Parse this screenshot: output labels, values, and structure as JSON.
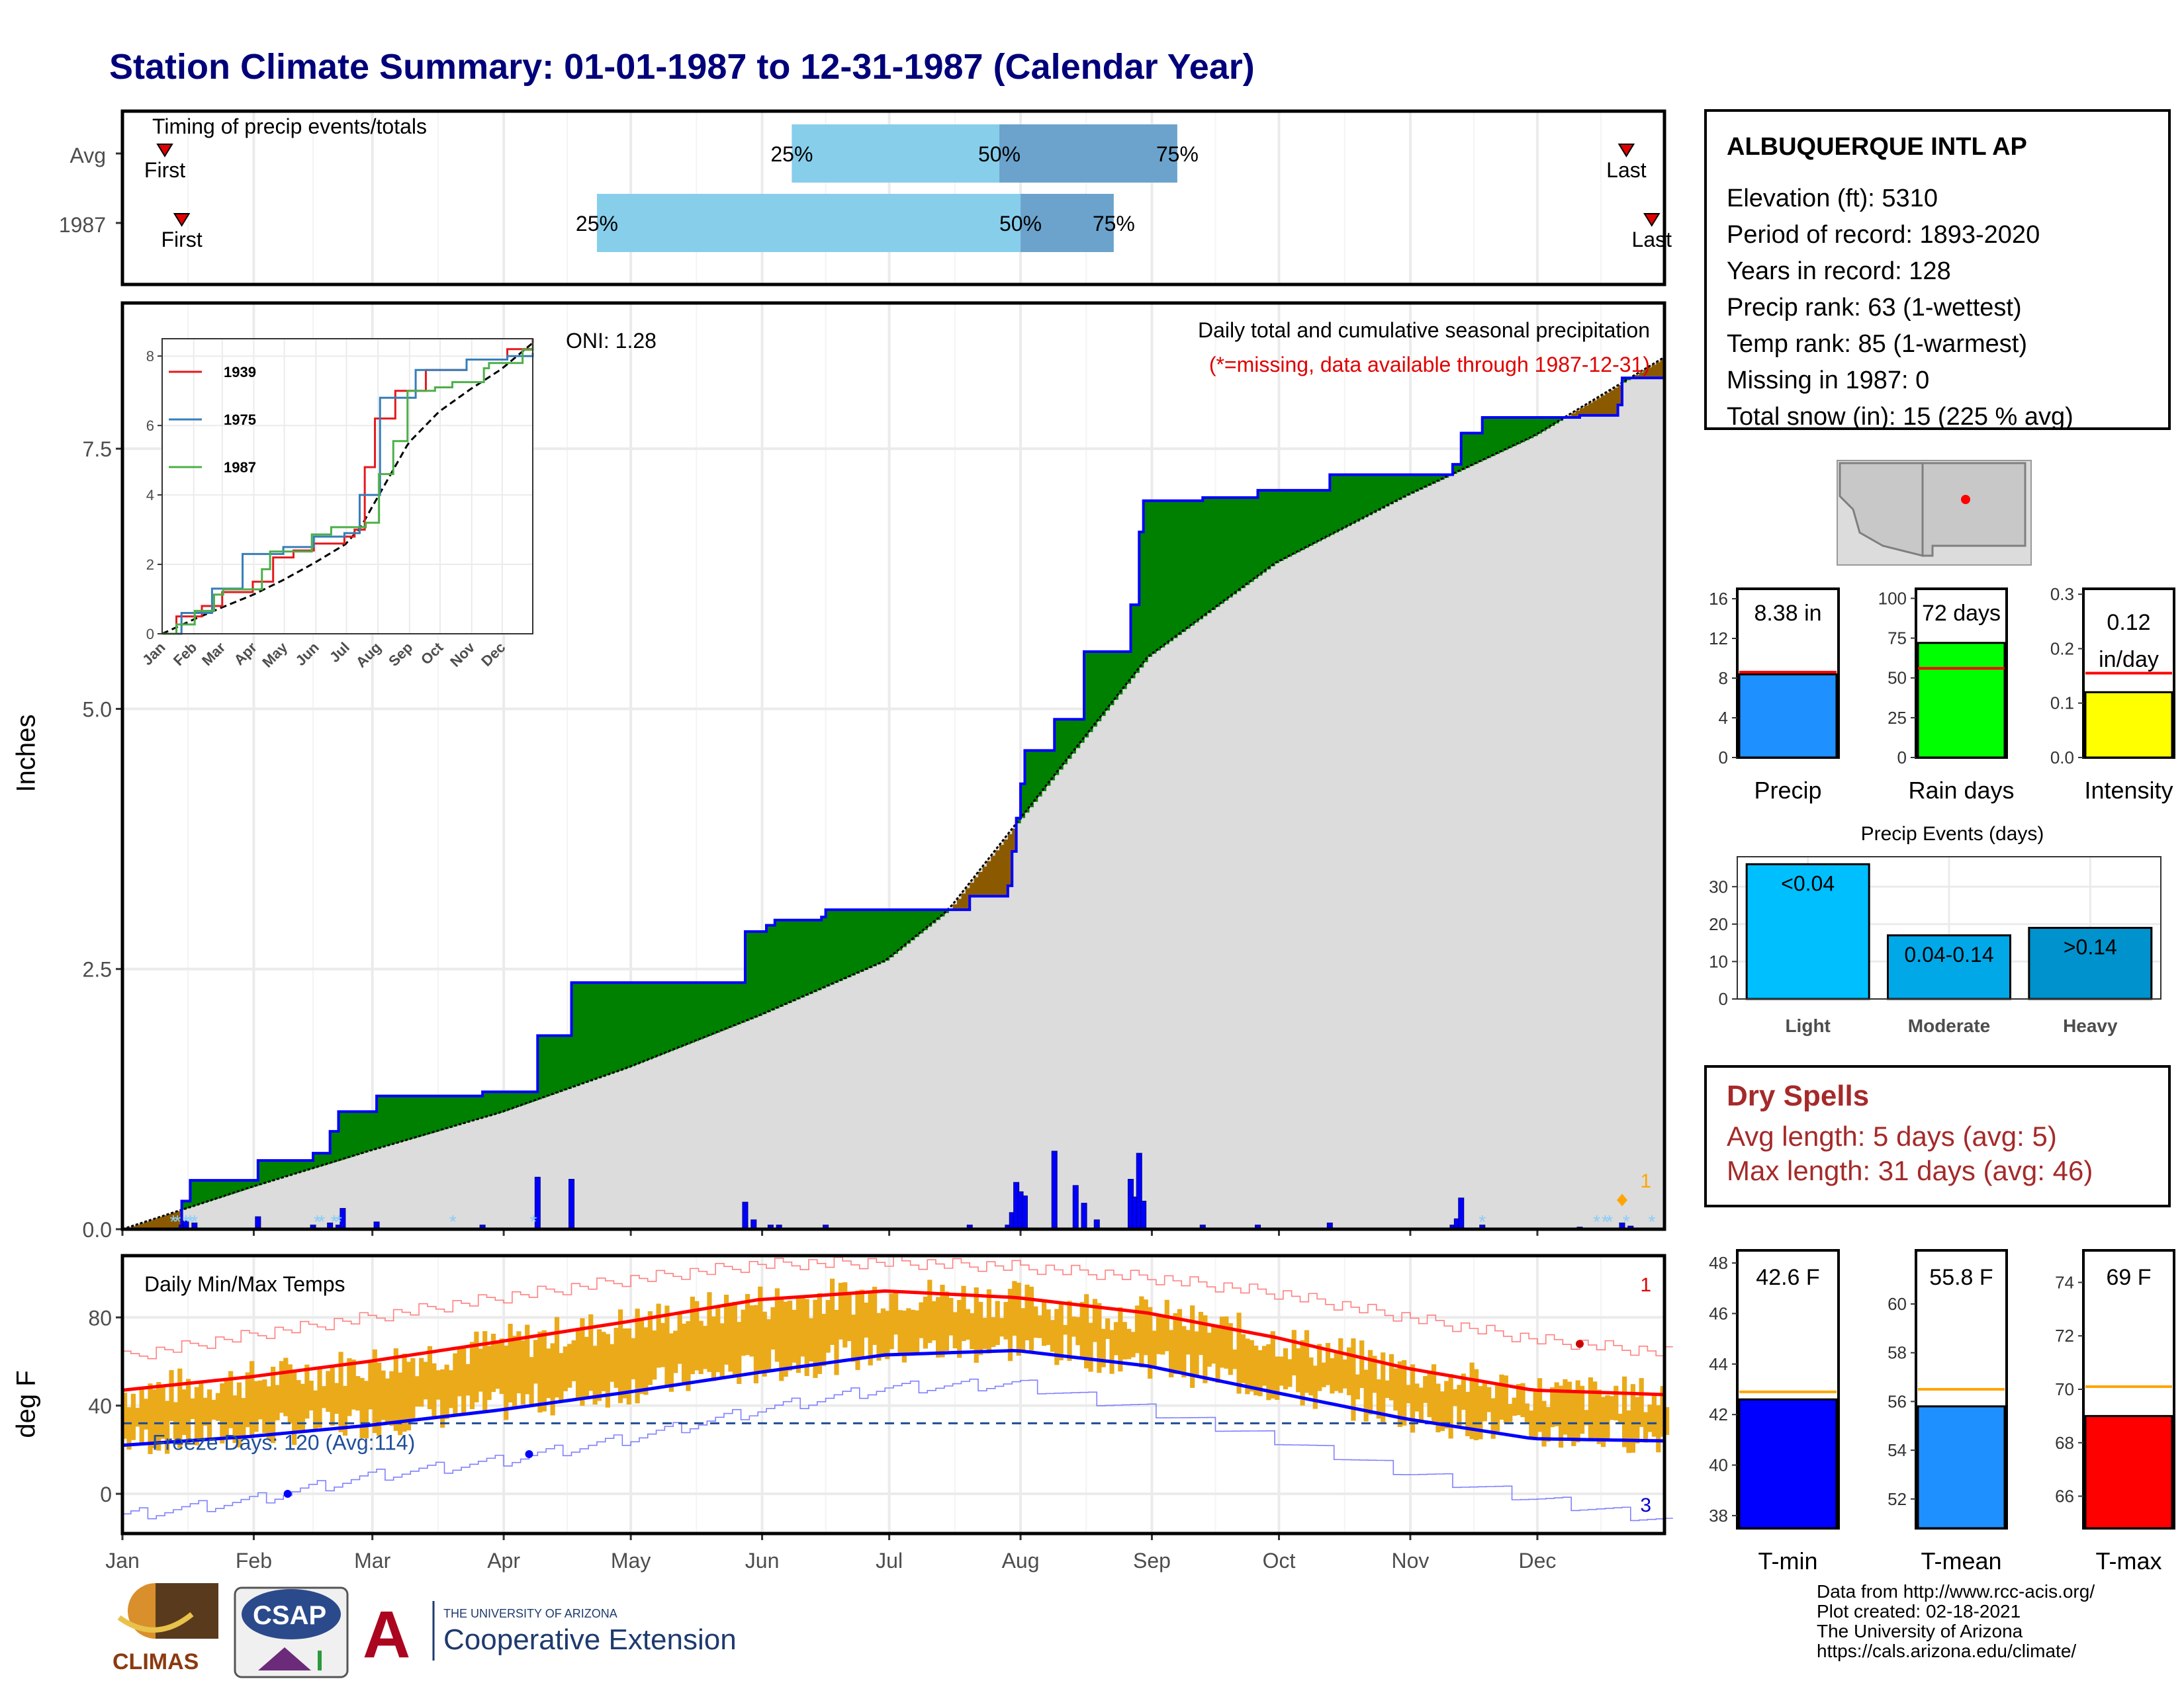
{
  "page": {
    "title": "Station Climate Summary: 01-01-1987 to 12-31-1987 (Calendar Year)",
    "inches_label": "Inches",
    "degf_label": "deg F",
    "months": [
      "Jan",
      "Feb",
      "Mar",
      "Apr",
      "May",
      "Jun",
      "Jul",
      "Aug",
      "Sep",
      "Oct",
      "Nov",
      "Dec"
    ]
  },
  "station": {
    "name": "ALBUQUERQUE INTL AP",
    "elevation": "Elevation (ft): 5310",
    "period": "Period of record: 1893-2020",
    "years": "Years in record: 128",
    "precip_rank": "Precip rank: 63 (1-wettest)",
    "temp_rank": "Temp rank: 85 (1-warmest)",
    "missing": "Missing in 1987: 0",
    "snow": "Total snow (in): 15 (225 % avg)"
  },
  "dry_spells": {
    "title": "Dry Spells",
    "avg": "Avg length: 5 days (avg: 5)",
    "max": "Max length: 31 days (avg: 46)"
  },
  "credits": {
    "line1": "Data from http://www.rcc-acis.org/",
    "line2": "Plot created: 02-18-2021",
    "line3": "The University of Arizona",
    "line4": "https://cals.arizona.edu/climate/"
  },
  "logos": {
    "climas": "CLIMAS",
    "csap": "CSAP",
    "ua_small": "THE UNIVERSITY OF ARIZONA",
    "ua_big": "Cooperative Extension"
  },
  "chart_data": [
    {
      "id": "timing",
      "type": "bar",
      "title": "Timing of precip events/totals",
      "rows": [
        "Avg",
        "1987"
      ],
      "avg": {
        "first": "Jan 11",
        "q25": "Jun 8",
        "q50": "Jul 27",
        "q75": "Sep 7",
        "last": "Dec 22"
      },
      "y1987": {
        "first": "Jan 15",
        "q25": "Apr 23",
        "q50": "Aug 1",
        "q75": "Aug 23",
        "last": "Dec 28"
      },
      "labels": {
        "first": "First",
        "last": "Last",
        "q25": "25%",
        "q50": "50%",
        "q75": "75%"
      },
      "colors": {
        "q25_50": "#87ceeb",
        "q50_75": "#6ba3cc",
        "marker": "#e00000"
      }
    },
    {
      "id": "cumulative_precip",
      "type": "area",
      "title": "Daily total and cumulative seasonal precipitation",
      "subtitle": "(*=missing, data available through 1987-12-31)",
      "oni": "ONI: 1.28",
      "ylim": [
        0,
        8.9
      ],
      "yticks": [
        0.0,
        2.5,
        5.0,
        7.5
      ],
      "ytick_labels": [
        "0.0",
        "2.5",
        "5.0",
        "7.5"
      ],
      "ylabel": "Inches",
      "corner_count": "1",
      "cum_1987": [
        [
          1,
          0
        ],
        [
          15,
          0.27
        ],
        [
          17,
          0.47
        ],
        [
          32,
          0.47
        ],
        [
          33,
          0.66
        ],
        [
          45,
          0.66
        ],
        [
          46,
          0.73
        ],
        [
          50,
          0.94
        ],
        [
          52,
          1.13
        ],
        [
          60,
          1.13
        ],
        [
          61,
          1.28
        ],
        [
          85,
          1.28
        ],
        [
          86,
          1.32
        ],
        [
          98,
          1.32
        ],
        [
          99,
          1.86
        ],
        [
          106,
          1.86
        ],
        [
          107,
          2.37
        ],
        [
          147,
          2.37
        ],
        [
          148,
          2.86
        ],
        [
          153,
          2.92
        ],
        [
          155,
          2.97
        ],
        [
          166,
          3.0
        ],
        [
          167,
          3.07
        ],
        [
          200,
          3.07
        ],
        [
          201,
          3.2
        ],
        [
          210,
          3.3
        ],
        [
          211,
          3.63
        ],
        [
          212,
          3.95
        ],
        [
          213,
          4.28
        ],
        [
          214,
          4.6
        ],
        [
          220,
          4.6
        ],
        [
          221,
          4.9
        ],
        [
          228,
          5.55
        ],
        [
          238,
          5.55
        ],
        [
          239,
          6.0
        ],
        [
          241,
          6.7
        ],
        [
          242,
          7.0
        ],
        [
          255,
          7.0
        ],
        [
          256,
          7.03
        ],
        [
          268,
          7.03
        ],
        [
          269,
          7.1
        ],
        [
          285,
          7.1
        ],
        [
          286,
          7.25
        ],
        [
          314,
          7.25
        ],
        [
          315,
          7.35
        ],
        [
          317,
          7.65
        ],
        [
          322,
          7.8
        ],
        [
          345,
          7.82
        ],
        [
          354,
          7.92
        ],
        [
          355,
          8.18
        ],
        [
          365,
          8.38
        ]
      ],
      "normal": [
        [
          1,
          0
        ],
        [
          31,
          0.4
        ],
        [
          59,
          0.75
        ],
        [
          90,
          1.12
        ],
        [
          120,
          1.55
        ],
        [
          151,
          2.05
        ],
        [
          181,
          2.58
        ],
        [
          196,
          3.07
        ],
        [
          212,
          3.9
        ],
        [
          243,
          5.5
        ],
        [
          273,
          6.4
        ],
        [
          304,
          7.05
        ],
        [
          334,
          7.62
        ],
        [
          365,
          8.38
        ]
      ],
      "daily_bars": [
        [
          15,
          0.04
        ],
        [
          16,
          0.08
        ],
        [
          18,
          0.06
        ],
        [
          33,
          0.12
        ],
        [
          46,
          0.04
        ],
        [
          50,
          0.06
        ],
        [
          52,
          0.04
        ],
        [
          53,
          0.2
        ],
        [
          61,
          0.07
        ],
        [
          86,
          0.04
        ],
        [
          99,
          0.5
        ],
        [
          107,
          0.48
        ],
        [
          148,
          0.26
        ],
        [
          150,
          0.09
        ],
        [
          154,
          0.04
        ],
        [
          156,
          0.04
        ],
        [
          167,
          0.04
        ],
        [
          201,
          0.04
        ],
        [
          210,
          0.04
        ],
        [
          211,
          0.16
        ],
        [
          212,
          0.45
        ],
        [
          213,
          0.36
        ],
        [
          214,
          0.32
        ],
        [
          221,
          0.75
        ],
        [
          226,
          0.42
        ],
        [
          228,
          0.25
        ],
        [
          231,
          0.09
        ],
        [
          239,
          0.48
        ],
        [
          240,
          0.31
        ],
        [
          241,
          0.73
        ],
        [
          242,
          0.27
        ],
        [
          256,
          0.04
        ],
        [
          269,
          0.04
        ],
        [
          286,
          0.06
        ],
        [
          315,
          0.04
        ],
        [
          316,
          0.1
        ],
        [
          317,
          0.3
        ],
        [
          322,
          0.04
        ],
        [
          345,
          0.02
        ],
        [
          355,
          0.06
        ],
        [
          357,
          0.03
        ]
      ],
      "snow_days": [
        13,
        14,
        16,
        17,
        18,
        47,
        48,
        51,
        52,
        79,
        98,
        322,
        349,
        351,
        352,
        356,
        362
      ],
      "colors": {
        "above": "#008000",
        "below": "#8b5a00",
        "normal_fill": "#dcdcdc",
        "line": "#0000ff",
        "bars": "#0000ff",
        "snow": "#87cefa"
      }
    },
    {
      "id": "inset_cumulative",
      "type": "line",
      "xticks": [
        "Jan",
        "Feb",
        "Mar",
        "Apr",
        "May",
        "Jun",
        "Jul",
        "Aug",
        "Sep",
        "Oct",
        "Nov",
        "Dec"
      ],
      "ylim": [
        0,
        8.5
      ],
      "yticks": [
        0,
        2,
        4,
        6,
        8
      ],
      "series": [
        {
          "name": "1939",
          "color": "#e41a1c",
          "values": [
            [
              1,
              0
            ],
            [
              15,
              0.5
            ],
            [
              40,
              0.8
            ],
            [
              60,
              1.2
            ],
            [
              90,
              1.5
            ],
            [
              110,
              2.2
            ],
            [
              130,
              2.4
            ],
            [
              150,
              2.6
            ],
            [
              180,
              2.8
            ],
            [
              190,
              3.0
            ],
            [
              200,
              4.8
            ],
            [
              210,
              6.2
            ],
            [
              230,
              7.0
            ],
            [
              260,
              7.6
            ],
            [
              300,
              7.9
            ],
            [
              340,
              8.2
            ],
            [
              365,
              8.5
            ]
          ]
        },
        {
          "name": "1975",
          "color": "#377eb8",
          "values": [
            [
              1,
              0
            ],
            [
              20,
              0.6
            ],
            [
              50,
              1.3
            ],
            [
              80,
              2.3
            ],
            [
              120,
              2.5
            ],
            [
              150,
              2.8
            ],
            [
              180,
              2.9
            ],
            [
              195,
              4.0
            ],
            [
              215,
              6.8
            ],
            [
              250,
              7.6
            ],
            [
              300,
              7.9
            ],
            [
              340,
              8.0
            ],
            [
              365,
              8.1
            ]
          ]
        },
        {
          "name": "1987",
          "color": "#4daf4a",
          "values": [
            [
              1,
              0
            ],
            [
              15,
              0.27
            ],
            [
              33,
              0.66
            ],
            [
              52,
              1.13
            ],
            [
              61,
              1.28
            ],
            [
              99,
              1.86
            ],
            [
              107,
              2.37
            ],
            [
              148,
              2.86
            ],
            [
              167,
              3.07
            ],
            [
              201,
              3.2
            ],
            [
              214,
              4.6
            ],
            [
              228,
              5.55
            ],
            [
              242,
              7.0
            ],
            [
              269,
              7.1
            ],
            [
              286,
              7.25
            ],
            [
              317,
              7.65
            ],
            [
              322,
              7.8
            ],
            [
              355,
              8.18
            ],
            [
              365,
              8.38
            ]
          ]
        }
      ],
      "normal_color": "#000000"
    },
    {
      "id": "temps",
      "type": "line",
      "title": "Daily Min/Max Temps",
      "ylabel": "deg F",
      "ylim": [
        -18,
        108
      ],
      "yticks": [
        0,
        40,
        80
      ],
      "freeze_line": 32,
      "freeze_label": "Freeze Days: 120 (Avg:114)",
      "count_high": "1",
      "count_low": "3",
      "normal_max": [
        [
          1,
          47
        ],
        [
          31,
          53
        ],
        [
          59,
          60
        ],
        [
          90,
          69
        ],
        [
          120,
          78
        ],
        [
          151,
          88
        ],
        [
          181,
          92
        ],
        [
          212,
          89
        ],
        [
          243,
          82
        ],
        [
          273,
          71
        ],
        [
          304,
          57
        ],
        [
          334,
          47
        ],
        [
          365,
          45
        ]
      ],
      "normal_min": [
        [
          1,
          22
        ],
        [
          31,
          26
        ],
        [
          59,
          31
        ],
        [
          90,
          38
        ],
        [
          120,
          46
        ],
        [
          151,
          55
        ],
        [
          181,
          63
        ],
        [
          212,
          65
        ],
        [
          243,
          58
        ],
        [
          273,
          46
        ],
        [
          304,
          34
        ],
        [
          334,
          25
        ],
        [
          365,
          24
        ]
      ],
      "record_max": [
        [
          1,
          62
        ],
        [
          31,
          72
        ],
        [
          59,
          80
        ],
        [
          90,
          89
        ],
        [
          120,
          97
        ],
        [
          151,
          104
        ],
        [
          181,
          105
        ],
        [
          212,
          103
        ],
        [
          243,
          98
        ],
        [
          273,
          91
        ],
        [
          304,
          80
        ],
        [
          334,
          70
        ],
        [
          365,
          64
        ]
      ],
      "record_min": [
        [
          1,
          -10
        ],
        [
          31,
          -3
        ],
        [
          59,
          8
        ],
        [
          90,
          15
        ],
        [
          120,
          25
        ],
        [
          151,
          38
        ],
        [
          181,
          48
        ],
        [
          212,
          50
        ],
        [
          243,
          38
        ],
        [
          273,
          25
        ],
        [
          304,
          10
        ],
        [
          334,
          -2
        ],
        [
          365,
          -12
        ]
      ],
      "colors": {
        "bars": "#eaaa1a",
        "normal_max": "#ff0000",
        "normal_min": "#0000ff",
        "freeze": "#1f4e99"
      }
    },
    {
      "id": "precip_total",
      "type": "bar",
      "categories": [
        "Precip"
      ],
      "values": [
        8.38
      ],
      "normal": 8.6,
      "label": "8.38 in",
      "ylim": [
        0,
        17
      ],
      "yticks": [
        "0",
        "4",
        "8",
        "12",
        "16"
      ],
      "color": "#1e90ff"
    },
    {
      "id": "rain_days",
      "type": "bar",
      "categories": [
        "Rain days"
      ],
      "values": [
        72
      ],
      "normal": 56,
      "label": "72 days",
      "ylim": [
        0,
        106
      ],
      "yticks": [
        "0",
        "25",
        "50",
        "75",
        "100"
      ],
      "color": "#00ff00"
    },
    {
      "id": "intensity",
      "type": "bar",
      "categories": [
        "Intensity"
      ],
      "values": [
        0.12
      ],
      "normal": 0.155,
      "label": "0.12",
      "label2": "in/day",
      "ylim": [
        0,
        0.31
      ],
      "yticks": [
        "0.0",
        "0.1",
        "0.2",
        "0.3"
      ],
      "color": "#ffff00"
    },
    {
      "id": "precip_events",
      "type": "bar",
      "title": "Precip Events (days)",
      "categories": [
        "Light",
        "Moderate",
        "Heavy"
      ],
      "values": [
        36,
        17,
        19
      ],
      "bar_labels": [
        "<0.04",
        "0.04-0.14",
        ">0.14"
      ],
      "ylim": [
        0,
        38
      ],
      "yticks": [
        "0",
        "10",
        "20",
        "30"
      ],
      "colors": [
        "#00bfff",
        "#00a8e8",
        "#0092cc"
      ]
    },
    {
      "id": "tmin",
      "type": "bar",
      "categories": [
        "T-min"
      ],
      "values": [
        42.6
      ],
      "normal": 42.9,
      "label": "42.6 F",
      "ylim": [
        37.5,
        48.5
      ],
      "yticks": [
        "38",
        "40",
        "42",
        "44",
        "46",
        "48"
      ],
      "color": "#0000ff"
    },
    {
      "id": "tmean",
      "type": "bar",
      "categories": [
        "T-mean"
      ],
      "values": [
        55.8
      ],
      "normal": 56.5,
      "label": "55.8 F",
      "ylim": [
        50.8,
        62.2
      ],
      "yticks": [
        "52",
        "54",
        "56",
        "58",
        "60"
      ],
      "color": "#1e90ff"
    },
    {
      "id": "tmax",
      "type": "bar",
      "categories": [
        "T-max"
      ],
      "values": [
        69
      ],
      "normal": 70.1,
      "label": "69 F",
      "ylim": [
        64.8,
        75.2
      ],
      "yticks": [
        "66",
        "68",
        "70",
        "72",
        "74"
      ],
      "color": "#ff0000"
    }
  ]
}
